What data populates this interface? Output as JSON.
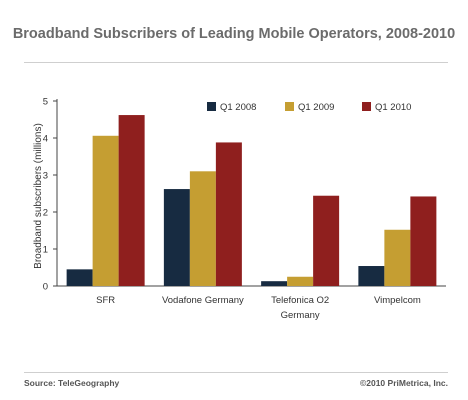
{
  "header": {
    "title": "Broadband Subscribers of Leading Mobile Operators, 2008-2010"
  },
  "footer": {
    "source": "Source: TeleGeography",
    "copyright": "©2010 PriMetrica, Inc."
  },
  "chart_data": {
    "type": "bar",
    "title": "Broadband Subscribers of Leading Mobile Operators, 2008-2010",
    "xlabel": "",
    "ylabel": "Broadband subscribers (millions)",
    "ylim": [
      0,
      5
    ],
    "yticks": [
      0,
      1,
      2,
      3,
      4,
      5
    ],
    "grid": false,
    "legend_position": "top-right",
    "categories": [
      [
        "SFR"
      ],
      [
        "Vodafone Germany"
      ],
      [
        "Telefonica O2",
        "Germany"
      ],
      [
        "Vimpelcom"
      ]
    ],
    "series": [
      {
        "name": "Q1 2008",
        "color": "#172b41",
        "values": [
          0.45,
          2.62,
          0.13,
          0.54
        ]
      },
      {
        "name": "Q1 2009",
        "color": "#c59e32",
        "values": [
          4.06,
          3.1,
          0.25,
          1.52
        ]
      },
      {
        "name": "Q1 2010",
        "color": "#8f1f1e",
        "values": [
          4.62,
          3.88,
          2.44,
          2.42
        ]
      }
    ]
  }
}
